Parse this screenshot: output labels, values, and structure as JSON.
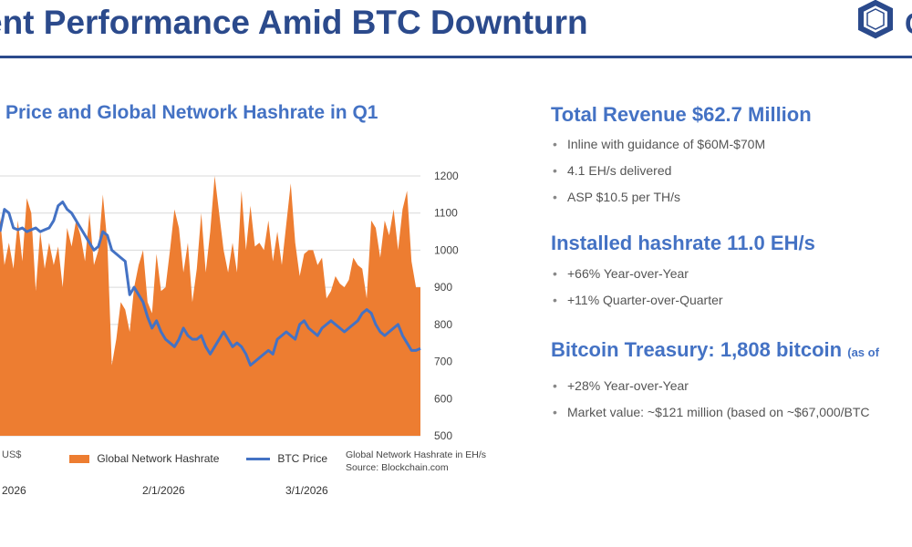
{
  "page": {
    "title": "ent Performance Amid BTC Downturn",
    "logo_letter": "C"
  },
  "chart": {
    "heading": "Price and Global Network Hashrate in Q1",
    "y_unit_label": "US$",
    "legend": [
      "Global Network Hashrate",
      "BTC Price"
    ],
    "source_line1": "Global Network Hashrate in EH/s",
    "source_line2": "Source: Blockchain.com",
    "x_labels": [
      "2026",
      "2/1/2026",
      "3/1/2026"
    ]
  },
  "chart_data": {
    "type": "area",
    "title": "Price and Global Network Hashrate in Q1",
    "xlabel": "",
    "right_axis": {
      "ylim": [
        500,
        1200
      ],
      "ticks": [
        500,
        600,
        700,
        800,
        900,
        1000,
        1100,
        1200
      ],
      "ylabel": ""
    },
    "left_axis_label": "US$",
    "x_tick_labels": [
      "2026",
      "2/1/2026",
      "3/1/2026"
    ],
    "grid": true,
    "legend_position": "bottom",
    "colors": {
      "hashrate": "#ed7d31",
      "btc_price": "#4472c4"
    },
    "series": [
      {
        "name": "Global Network Hashrate",
        "kind": "area",
        "axis": "right",
        "values": [
          1090,
          960,
          1020,
          950,
          1080,
          970,
          1140,
          1100,
          890,
          1050,
          950,
          1020,
          960,
          1010,
          900,
          1060,
          1010,
          1080,
          1040,
          970,
          1100,
          960,
          1000,
          1150,
          1020,
          690,
          760,
          860,
          840,
          780,
          900,
          960,
          1000,
          860,
          830,
          990,
          890,
          900,
          1000,
          1110,
          1060,
          940,
          1020,
          860,
          950,
          1100,
          940,
          1050,
          1200,
          1100,
          1000,
          940,
          1020,
          940,
          1160,
          1000,
          1120,
          1010,
          1020,
          1000,
          1080,
          970,
          1050,
          960,
          1070,
          1180,
          1020,
          930,
          990,
          1000,
          1000,
          960,
          980,
          870,
          890,
          930,
          910,
          900,
          920,
          980,
          960,
          950,
          870,
          1080,
          1060,
          980,
          1080,
          1040,
          1110,
          1000,
          1110,
          1160,
          970,
          900,
          900
        ],
        "unit": "EH/s"
      },
      {
        "name": "BTC Price",
        "kind": "line",
        "axis": "right",
        "values": [
          1050,
          1110,
          1100,
          1060,
          1055,
          1060,
          1050,
          1055,
          1060,
          1050,
          1055,
          1060,
          1080,
          1120,
          1130,
          1110,
          1100,
          1080,
          1060,
          1040,
          1020,
          1000,
          1010,
          1050,
          1040,
          1000,
          990,
          980,
          970,
          880,
          900,
          880,
          860,
          820,
          790,
          810,
          780,
          760,
          750,
          740,
          760,
          790,
          770,
          760,
          760,
          770,
          740,
          720,
          740,
          760,
          780,
          760,
          740,
          750,
          740,
          720,
          690,
          700,
          710,
          720,
          730,
          720,
          760,
          770,
          780,
          770,
          760,
          800,
          810,
          790,
          780,
          770,
          790,
          800,
          810,
          800,
          790,
          780,
          790,
          800,
          810,
          830,
          840,
          830,
          800,
          780,
          770,
          780,
          790,
          800,
          770,
          750,
          730,
          730,
          735
        ]
      }
    ]
  },
  "panel": {
    "sections": [
      {
        "heading": "Total Revenue $62.7 Million",
        "bullets": [
          "Inline with guidance of $60M-$70M",
          "4.1 EH/s delivered",
          "ASP $10.5 per TH/s"
        ]
      },
      {
        "heading": "Installed hashrate 11.0 EH/s",
        "bullets": [
          "+66% Year-over-Year",
          "+11% Quarter-over-Quarter"
        ]
      },
      {
        "heading": "Bitcoin Treasury: 1,808 bitcoin",
        "heading_suffix": "(as of",
        "bullets": [
          "+28% Year-over-Year",
          "Market value: ~$121 million (based on ~$67,000/BTC"
        ]
      }
    ]
  }
}
